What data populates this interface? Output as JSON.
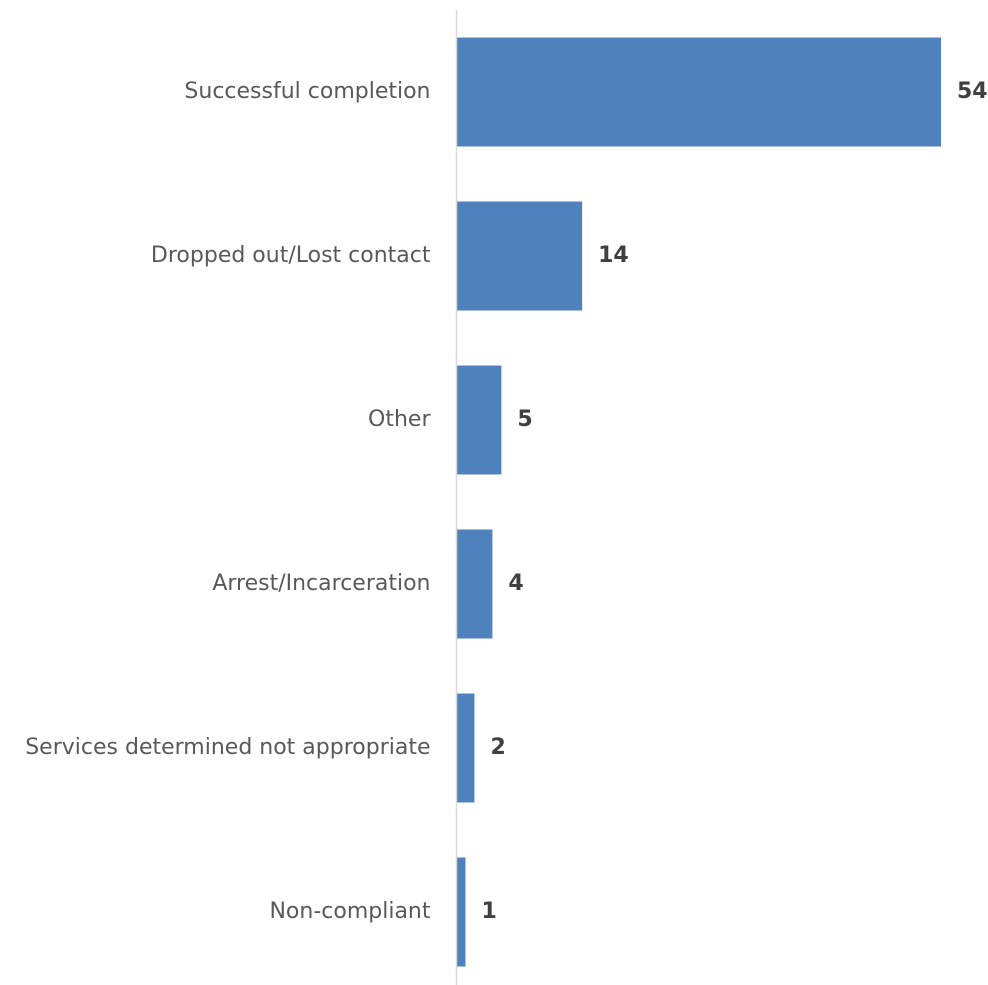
{
  "chart_data": {
    "type": "bar",
    "orientation": "horizontal",
    "title": "",
    "xlabel": "",
    "ylabel": "",
    "categories": [
      "Successful completion",
      "Dropped out/Lost contact",
      "Other",
      "Arrest/Incarceration",
      "Services determined not appropriate",
      "Non-compliant"
    ],
    "values": [
      54,
      14,
      5,
      4,
      2,
      1
    ],
    "xlim": [
      0,
      54
    ],
    "grid": false,
    "legend": "none",
    "data_labels": true,
    "colors": {
      "bar": "#4F81BD",
      "axis": "#D9D9D9",
      "category_text": "#595959",
      "value_text": "#404040"
    }
  }
}
